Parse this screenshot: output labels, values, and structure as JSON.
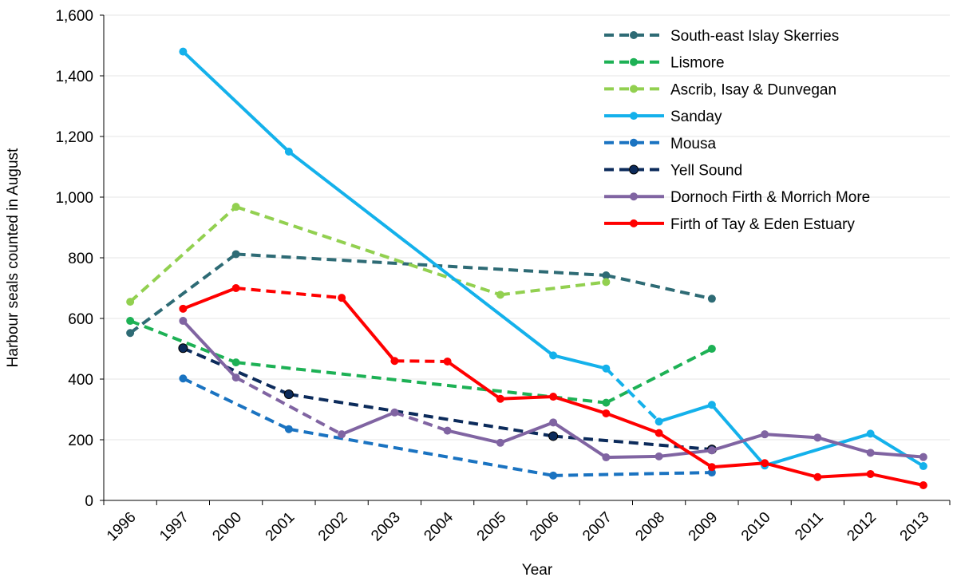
{
  "chart_data": {
    "type": "line",
    "x_label": "Year",
    "y_label": "Harbour  seals  counted  in  August",
    "categories": [
      "1996",
      "1997",
      "2000",
      "2001",
      "2002",
      "2003",
      "2004",
      "2005",
      "2006",
      "2007",
      "2008",
      "2009",
      "2010",
      "2011",
      "2012",
      "2013"
    ],
    "ylim": [
      0,
      1600
    ],
    "yticks": [
      0,
      200,
      400,
      600,
      800,
      {
        "value": 1000,
        "label": "1,000"
      },
      {
        "value": 1200,
        "label": "1,200"
      },
      {
        "value": 1400,
        "label": "1,400"
      },
      {
        "value": 1600,
        "label": "1,600"
      }
    ],
    "grid": true,
    "legend": "top-right",
    "series": [
      {
        "name": "South-east Islay Skerries",
        "color": "#2e6b75",
        "line_style": "dashed",
        "x": [
          "1996",
          "2000",
          "2007",
          "2009"
        ],
        "values": [
          552,
          812,
          742,
          665
        ]
      },
      {
        "name": "Lismore",
        "color": "#1db155",
        "line_style": "dashed",
        "x": [
          "1996",
          "2000",
          "2007",
          "2009"
        ],
        "values": [
          592,
          455,
          322,
          500
        ]
      },
      {
        "name": "Ascrib, Isay & Dunvegan",
        "color": "#92d050",
        "line_style": "dashed",
        "x": [
          "1996",
          "2000",
          "2005",
          "2007"
        ],
        "values": [
          655,
          968,
          678,
          720
        ]
      },
      {
        "name": "Sanday",
        "color": "#14b1eb",
        "line_style": "solid",
        "dashed_segments": [
          3
        ],
        "x": [
          "1997",
          "2001",
          "2006",
          "2007",
          "2008",
          "2009",
          "2010",
          "2012",
          "2013"
        ],
        "values": [
          1480,
          1150,
          478,
          435,
          260,
          315,
          115,
          220,
          113
        ]
      },
      {
        "name": "Mousa",
        "color": "#1a73c1",
        "line_style": "dashed",
        "x": [
          "1997",
          "2001",
          "2006",
          "2009"
        ],
        "values": [
          402,
          235,
          82,
          92
        ]
      },
      {
        "name": "Yell Sound",
        "color": "#0c2b5b",
        "line_style": "dashed",
        "x": [
          "1997",
          "2001",
          "2006",
          "2009"
        ],
        "values": [
          502,
          350,
          212,
          168
        ]
      },
      {
        "name": "Dornoch Firth & Morrich More",
        "color": "#8064a2",
        "line_style": "solid",
        "dashed_segments": [
          1,
          3
        ],
        "x": [
          "1997",
          "2000",
          "2002",
          "2003",
          "2004",
          "2005",
          "2006",
          "2007",
          "2008",
          "2009",
          "2010",
          "2011",
          "2012",
          "2013"
        ],
        "values": [
          592,
          405,
          218,
          290,
          230,
          190,
          257,
          142,
          145,
          165,
          218,
          207,
          157,
          143
        ]
      },
      {
        "name": "Firth of Tay & Eden Estuary",
        "color": "#ff0000",
        "line_style": "solid",
        "dashed_segments": [
          1,
          3
        ],
        "x": [
          "1997",
          "2000",
          "2002",
          "2003",
          "2004",
          "2005",
          "2006",
          "2007",
          "2008",
          "2009",
          "2010",
          "2011",
          "2012",
          "2013"
        ],
        "values": [
          632,
          700,
          668,
          460,
          458,
          335,
          342,
          287,
          222,
          110,
          123,
          77,
          87,
          50
        ]
      }
    ]
  }
}
